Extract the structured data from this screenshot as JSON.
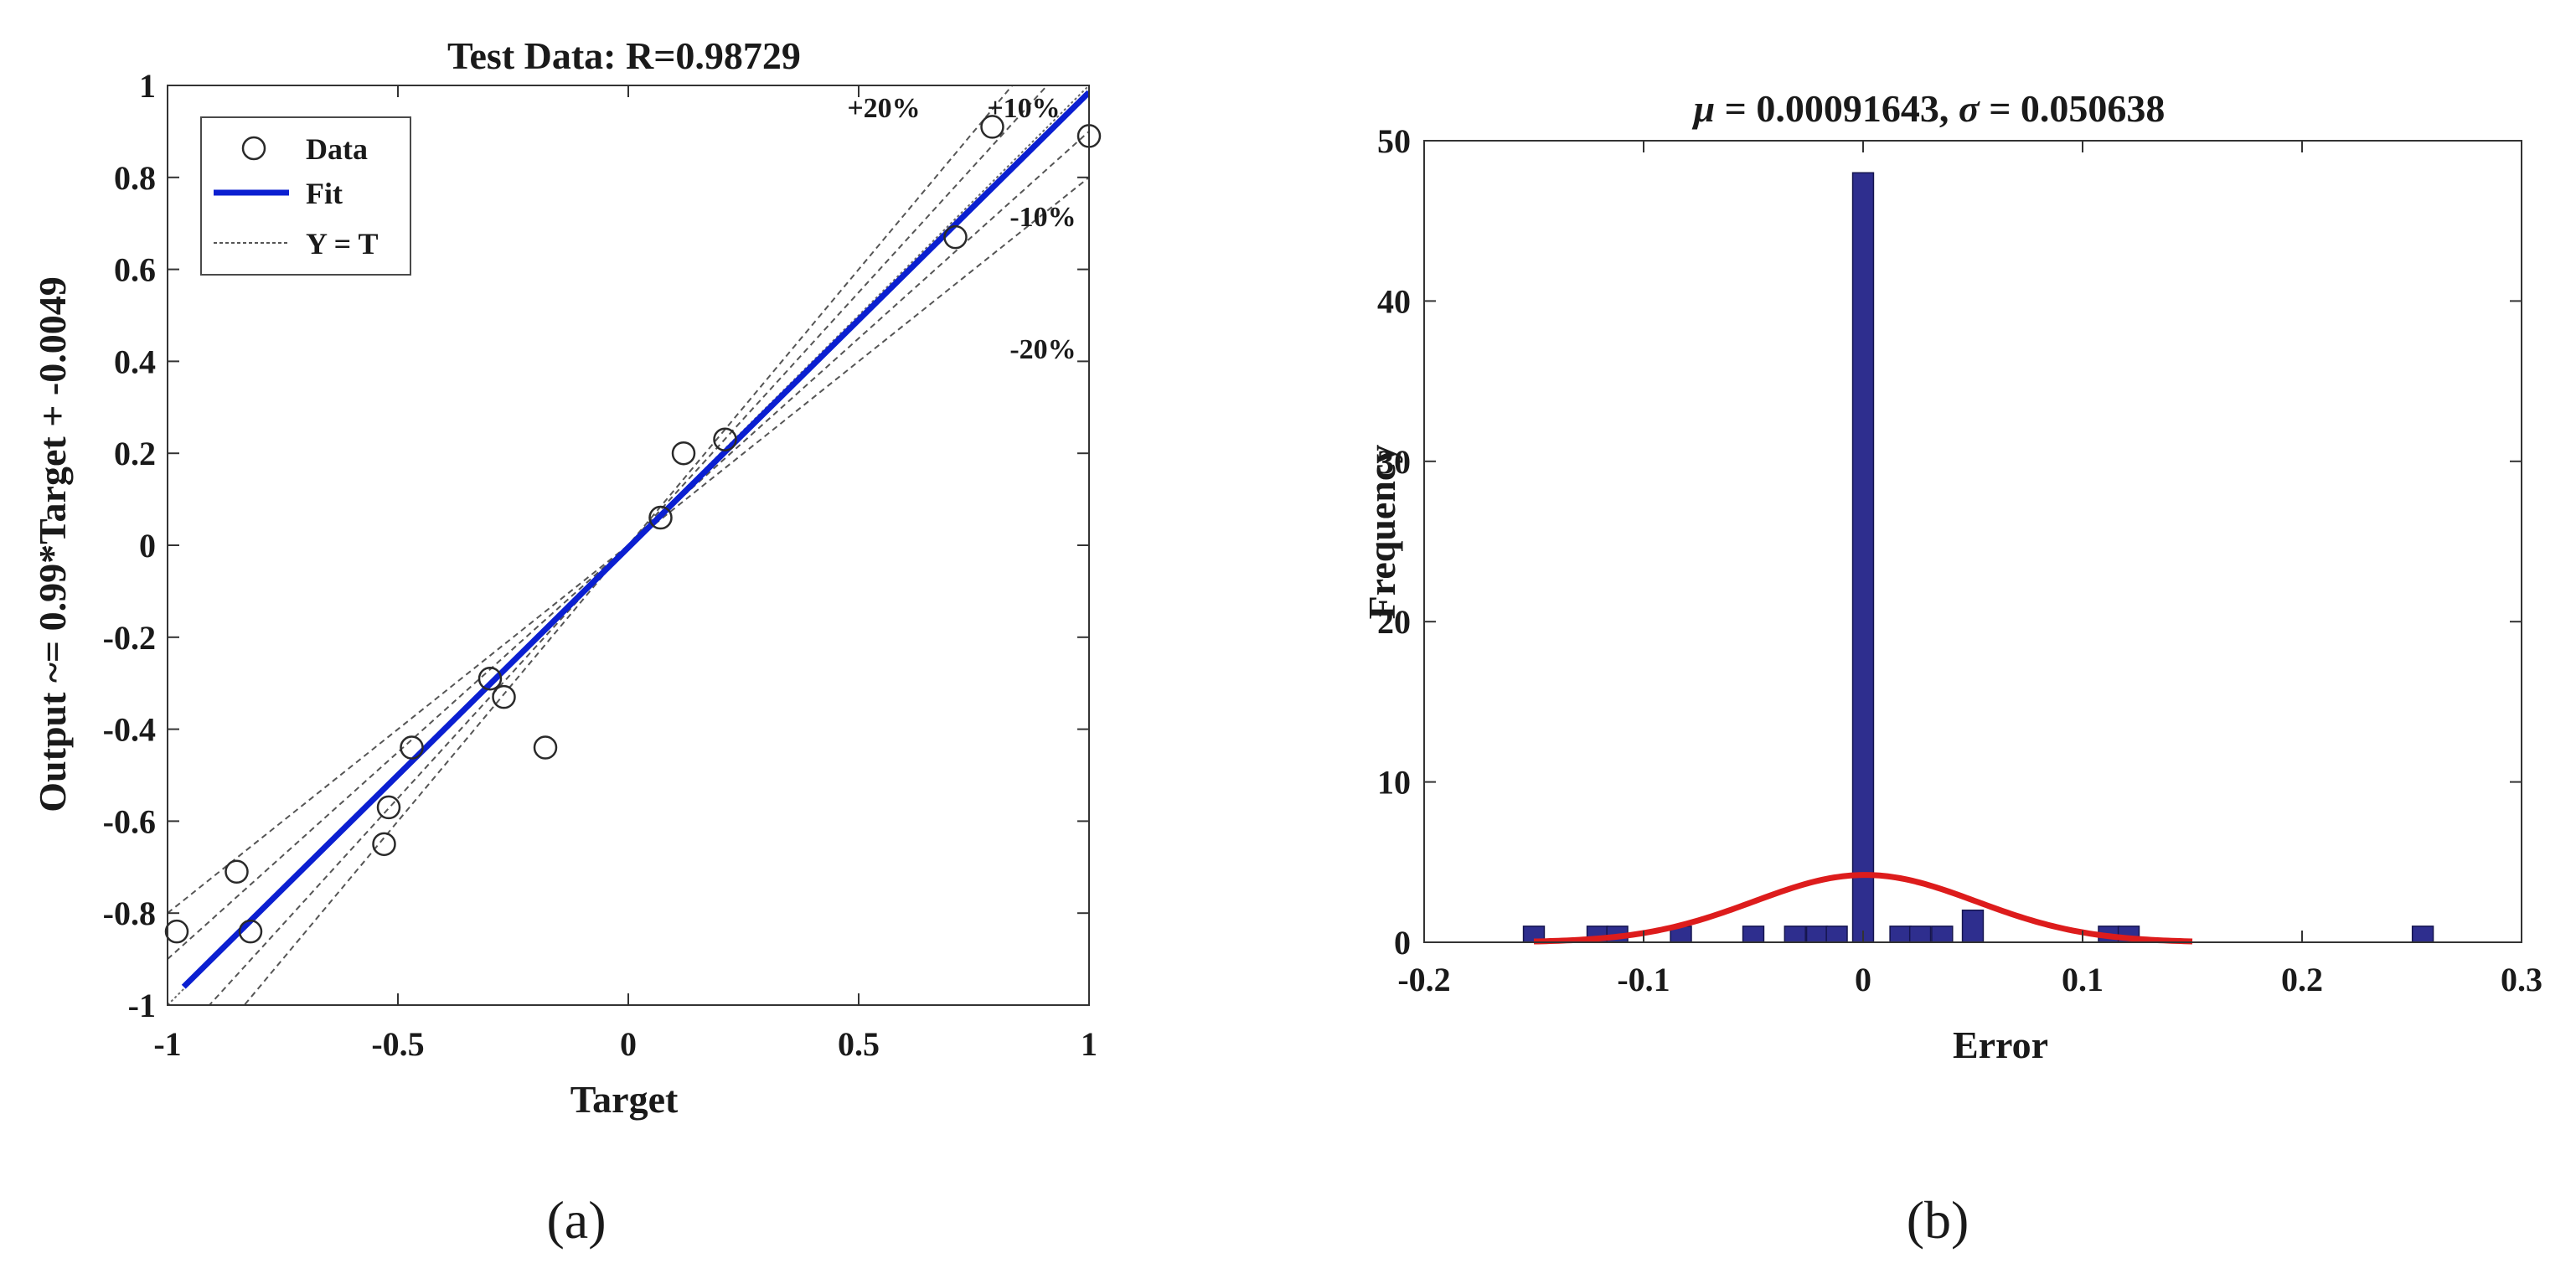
{
  "chart_data": [
    {
      "panel": "(a)",
      "type": "scatter",
      "title": "Test Data: R=0.98729",
      "xlabel": "Target",
      "ylabel": "Output ~= 0.99*Target + -0.0049",
      "xlim": [
        -1,
        1
      ],
      "ylim": [
        -1,
        1
      ],
      "xticks": [
        "-1",
        "-0.5",
        "0",
        "0.5",
        "1"
      ],
      "yticks": [
        "-1",
        "-0.8",
        "-0.6",
        "-0.4",
        "-0.2",
        "0",
        "0.2",
        "0.4",
        "0.6",
        "0.8",
        "1"
      ],
      "fit": {
        "slope": 0.99,
        "intercept": -0.0049,
        "color": "#0b1fd1"
      },
      "legend": {
        "placement": "top-left",
        "entries": [
          "Data",
          "Fit",
          "Y = T"
        ]
      },
      "bands": [
        {
          "label": "+20%",
          "factor": 1.2
        },
        {
          "label": "+10%",
          "factor": 1.1
        },
        {
          "label": "-10%",
          "factor": 0.9
        },
        {
          "label": "-20%",
          "factor": 0.8
        }
      ],
      "points": [
        {
          "x": -0.98,
          "y": -0.84
        },
        {
          "x": -0.85,
          "y": -0.71
        },
        {
          "x": -0.82,
          "y": -0.84
        },
        {
          "x": -0.53,
          "y": -0.65
        },
        {
          "x": -0.52,
          "y": -0.57
        },
        {
          "x": -0.47,
          "y": -0.44
        },
        {
          "x": -0.3,
          "y": -0.29
        },
        {
          "x": -0.27,
          "y": -0.33
        },
        {
          "x": -0.18,
          "y": -0.44
        },
        {
          "x": 0.07,
          "y": 0.06
        },
        {
          "x": 0.12,
          "y": 0.2
        },
        {
          "x": 0.21,
          "y": 0.23
        },
        {
          "x": 0.71,
          "y": 0.67
        },
        {
          "x": 0.79,
          "y": 0.91
        },
        {
          "x": 1.0,
          "y": 0.89
        }
      ]
    },
    {
      "panel": "(b)",
      "type": "bar",
      "title": "μ = 0.00091643, σ = 0.050638",
      "title_parts": {
        "mu_symbol": "μ",
        "mu_value": " = 0.00091643, ",
        "sigma_symbol": "σ",
        "sigma_value": " = 0.050638"
      },
      "xlabel": "Error",
      "ylabel": "Frequency",
      "xlim": [
        -0.2,
        0.3
      ],
      "ylim": [
        0,
        50
      ],
      "xticks": [
        "-0.2",
        "-0.1",
        "0",
        "0.1",
        "0.2",
        "0.3"
      ],
      "yticks": [
        "0",
        "10",
        "20",
        "30",
        "40",
        "50"
      ],
      "bar_width": 0.0095,
      "bar_color": "#2e2e8e",
      "bins": [
        {
          "x": -0.15,
          "count": 1
        },
        {
          "x": -0.121,
          "count": 1
        },
        {
          "x": -0.112,
          "count": 1
        },
        {
          "x": -0.083,
          "count": 1
        },
        {
          "x": -0.05,
          "count": 1
        },
        {
          "x": -0.031,
          "count": 1
        },
        {
          "x": -0.021,
          "count": 1
        },
        {
          "x": -0.012,
          "count": 1
        },
        {
          "x": 0.0,
          "count": 48
        },
        {
          "x": 0.017,
          "count": 1
        },
        {
          "x": 0.026,
          "count": 1
        },
        {
          "x": 0.036,
          "count": 1
        },
        {
          "x": 0.05,
          "count": 2
        },
        {
          "x": 0.112,
          "count": 1
        },
        {
          "x": 0.121,
          "count": 1
        },
        {
          "x": 0.255,
          "count": 1
        }
      ],
      "normal_curve": {
        "mean": 0.00091643,
        "sigma": 0.050638,
        "peak": 4.2,
        "x_range": [
          -0.15,
          0.15
        ],
        "color": "#dd1c1c"
      }
    }
  ]
}
